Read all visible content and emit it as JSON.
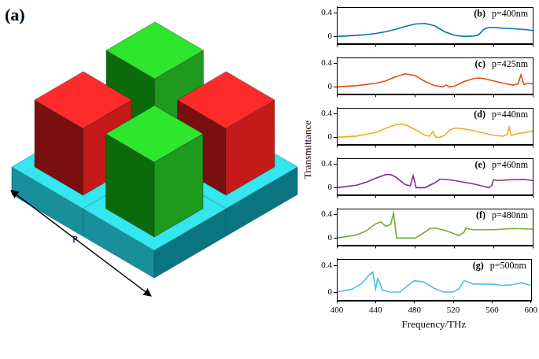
{
  "figure": {
    "label": "(a)",
    "period_label": "P",
    "ylabel": "Transmittance"
  },
  "chart_data": [
    {
      "type": "line",
      "title": "(b)",
      "annotation": "p=400nm",
      "color": "#0072BD",
      "grid": false,
      "tick_labels": "y",
      "xlim": [
        400,
        600
      ],
      "xticks": [
        400,
        440,
        480,
        520,
        560,
        600
      ],
      "ylim": [
        -0.12,
        0.5
      ],
      "yticks": [
        0,
        0.4
      ],
      "x": [
        400,
        410,
        420,
        430,
        440,
        450,
        460,
        470,
        480,
        490,
        500,
        510,
        520,
        530,
        540,
        545,
        550,
        555,
        560,
        570,
        580,
        590,
        600
      ],
      "values": [
        0,
        0.01,
        0.02,
        0.03,
        0.05,
        0.08,
        0.12,
        0.17,
        0.21,
        0.22,
        0.18,
        0.08,
        0.02,
        0,
        0.01,
        0.03,
        0.12,
        0.15,
        0.15,
        0.14,
        0.13,
        0.12,
        0.1
      ]
    },
    {
      "type": "line",
      "title": "(c)",
      "annotation": "p=425nm",
      "color": "#D95319",
      "grid": false,
      "tick_labels": "y",
      "xlim": [
        400,
        600
      ],
      "xticks": [
        400,
        440,
        480,
        520,
        560,
        600
      ],
      "ylim": [
        -0.12,
        0.5
      ],
      "yticks": [
        0,
        0.4
      ],
      "x": [
        400,
        420,
        440,
        450,
        460,
        470,
        480,
        490,
        500,
        508,
        512,
        515,
        520,
        530,
        540,
        545,
        550,
        560,
        570,
        580,
        585,
        588,
        591,
        595,
        600
      ],
      "values": [
        0,
        0.02,
        0.06,
        0.1,
        0.17,
        0.22,
        0.19,
        0.09,
        0.02,
        0,
        0.03,
        0,
        0.01,
        0.09,
        0.14,
        0.15,
        0.14,
        0.1,
        0.06,
        0.03,
        0.05,
        0.2,
        0.04,
        0.06,
        0.05
      ]
    },
    {
      "type": "line",
      "title": "(d)",
      "annotation": "p=440nm",
      "color": "#EDB120",
      "grid": false,
      "tick_labels": "y",
      "xlim": [
        400,
        600
      ],
      "xticks": [
        400,
        440,
        480,
        520,
        560,
        600
      ],
      "ylim": [
        -0.12,
        0.5
      ],
      "yticks": [
        0,
        0.4
      ],
      "x": [
        400,
        420,
        440,
        450,
        460,
        465,
        470,
        480,
        490,
        495,
        498,
        501,
        505,
        510,
        515,
        520,
        525,
        530,
        540,
        550,
        560,
        570,
        574,
        576,
        578,
        585,
        600
      ],
      "values": [
        0,
        0.02,
        0.08,
        0.15,
        0.21,
        0.22,
        0.21,
        0.13,
        0.03,
        0.02,
        0.1,
        0,
        0,
        0.03,
        0.12,
        0.15,
        0.15,
        0.14,
        0.11,
        0.07,
        0.03,
        0.02,
        0.05,
        0.17,
        0.03,
        0.06,
        0.1
      ]
    },
    {
      "type": "line",
      "title": "(e)",
      "annotation": "p=460nm",
      "color": "#7E2F8E",
      "grid": false,
      "tick_labels": "y",
      "xlim": [
        400,
        600
      ],
      "xticks": [
        400,
        440,
        480,
        520,
        560,
        600
      ],
      "ylim": [
        -0.12,
        0.5
      ],
      "yticks": [
        0,
        0.4
      ],
      "x": [
        400,
        420,
        430,
        440,
        450,
        455,
        460,
        470,
        475,
        478,
        481,
        490,
        500,
        505,
        510,
        520,
        530,
        540,
        550,
        555,
        558,
        560,
        565,
        575,
        590,
        600
      ],
      "values": [
        0,
        0.04,
        0.09,
        0.16,
        0.22,
        0.22,
        0.18,
        0.05,
        0.03,
        0.2,
        0,
        0,
        0.08,
        0.14,
        0.14,
        0.12,
        0.09,
        0.06,
        0.02,
        0,
        0.03,
        0.13,
        0.12,
        0.13,
        0.14,
        0.12
      ]
    },
    {
      "type": "line",
      "title": "(f)",
      "annotation": "p=480nm",
      "color": "#77AC30",
      "grid": false,
      "tick_labels": "y",
      "xlim": [
        400,
        600
      ],
      "xticks": [
        400,
        440,
        480,
        520,
        560,
        600
      ],
      "ylim": [
        -0.12,
        0.5
      ],
      "yticks": [
        0,
        0.4
      ],
      "x": [
        400,
        420,
        430,
        440,
        445,
        450,
        455,
        458,
        461,
        470,
        480,
        490,
        495,
        500,
        510,
        520,
        525,
        530,
        532,
        535,
        540,
        560,
        580,
        600
      ],
      "values": [
        0,
        0.05,
        0.12,
        0.24,
        0.27,
        0.2,
        0.23,
        0.42,
        0,
        0,
        0,
        0.1,
        0.16,
        0.17,
        0.13,
        0.07,
        0.04,
        0.1,
        0.17,
        0.15,
        0.14,
        0.14,
        0.16,
        0.15
      ]
    },
    {
      "type": "line",
      "title": "(g)",
      "annotation": "p=500nm",
      "color": "#4DBEEE",
      "grid": false,
      "xlabel": "Frequency/THz",
      "xlim": [
        400,
        600
      ],
      "xticks": [
        400,
        440,
        480,
        520,
        560,
        600
      ],
      "ylim": [
        -0.12,
        0.5
      ],
      "yticks": [
        0,
        0.4
      ],
      "x": [
        400,
        415,
        425,
        433,
        437,
        440,
        442,
        444,
        447,
        455,
        465,
        475,
        480,
        490,
        500,
        510,
        520,
        526,
        530,
        532,
        540,
        550,
        560,
        570,
        580,
        590,
        600
      ],
      "values": [
        0,
        0.04,
        0.12,
        0.25,
        0.3,
        0.05,
        0.2,
        0.15,
        0.03,
        0,
        0,
        0.12,
        0.17,
        0.15,
        0.06,
        0,
        0,
        0.05,
        0.15,
        0.17,
        0.12,
        0.12,
        0.12,
        0.1,
        0.11,
        0.14,
        0.1
      ]
    }
  ]
}
